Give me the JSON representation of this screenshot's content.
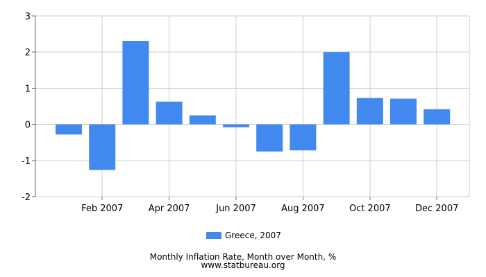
{
  "chart_data": {
    "type": "bar",
    "categories": [
      "Jan 2007",
      "Feb 2007",
      "Mar 2007",
      "Apr 2007",
      "May 2007",
      "Jun 2007",
      "Jul 2007",
      "Aug 2007",
      "Sep 2007",
      "Oct 2007",
      "Nov 2007",
      "Dec 2007"
    ],
    "x_tick_labels": [
      "Feb 2007",
      "Apr 2007",
      "Jun 2007",
      "Aug 2007",
      "Oct 2007",
      "Dec 2007"
    ],
    "series": [
      {
        "name": "Greece, 2007",
        "values": [
          -0.28,
          -1.26,
          2.31,
          0.63,
          0.25,
          -0.08,
          -0.75,
          -0.72,
          2.0,
          0.73,
          0.71,
          0.42
        ]
      }
    ],
    "ylim": [
      -2,
      3
    ],
    "y_ticks": [
      3,
      2,
      1,
      0,
      -1,
      -2
    ],
    "grid": true,
    "legend_position": "bottom",
    "title": "Monthly Inflation Rate, Month over Month, %",
    "source": "www.statbureau.org",
    "xlabel": "",
    "ylabel": ""
  },
  "colors": {
    "bar": "#4189EE",
    "grid": "#CCCCCC",
    "axis": "#666666"
  }
}
